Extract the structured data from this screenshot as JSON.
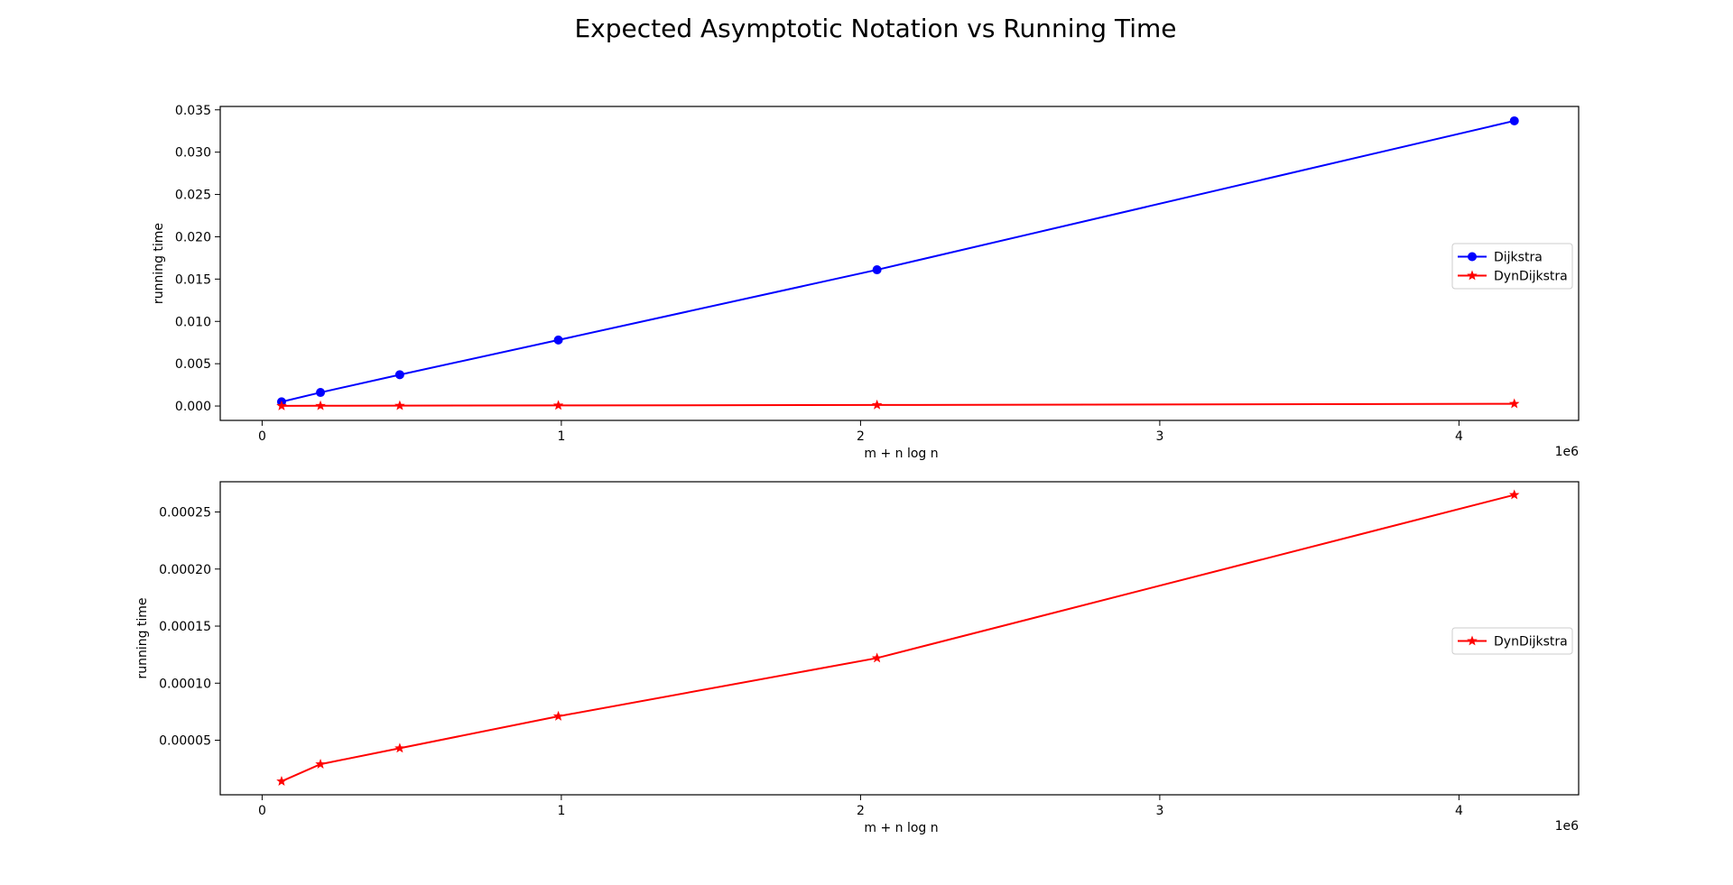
{
  "figure": {
    "title": "Expected Asymptotic Notation vs Running Time"
  },
  "chart_data": [
    {
      "type": "line",
      "title": "",
      "xlabel": "m + n log n",
      "ylabel": "running time",
      "x_offset_text": "1e6",
      "xlim": [
        -140000,
        4400000
      ],
      "ylim": [
        -0.0017,
        0.0354
      ],
      "x_ticks": [
        0,
        1000000,
        2000000,
        3000000,
        4000000
      ],
      "x_tick_labels": [
        "0",
        "1",
        "2",
        "3",
        "4"
      ],
      "y_ticks": [
        0.0,
        0.005,
        0.01,
        0.015,
        0.02,
        0.025,
        0.03,
        0.035
      ],
      "y_tick_labels": [
        "0.000",
        "0.005",
        "0.010",
        "0.015",
        "0.020",
        "0.025",
        "0.030",
        "0.035"
      ],
      "grid": false,
      "legend_position": "center-right",
      "x": [
        65000,
        195000,
        460000,
        990000,
        2055000,
        4185000
      ],
      "series": [
        {
          "name": "Dijkstra",
          "color": "#0000ff",
          "marker": "circle",
          "values": [
            0.0005,
            0.0016,
            0.0037,
            0.0078,
            0.0161,
            0.0337
          ]
        },
        {
          "name": "DynDijkstra",
          "color": "#ff0000",
          "marker": "star",
          "values": [
            1.4e-05,
            2.9e-05,
            4.3e-05,
            7.1e-05,
            0.000122,
            0.000265
          ]
        }
      ]
    },
    {
      "type": "line",
      "title": "",
      "xlabel": "m + n log n",
      "ylabel": "running time",
      "x_offset_text": "1e6",
      "xlim": [
        -140000,
        4400000
      ],
      "ylim": [
        2.2e-06,
        0.0002765
      ],
      "x_ticks": [
        0,
        1000000,
        2000000,
        3000000,
        4000000
      ],
      "x_tick_labels": [
        "0",
        "1",
        "2",
        "3",
        "4"
      ],
      "y_ticks": [
        5e-05,
        0.0001,
        0.00015,
        0.0002,
        0.00025
      ],
      "y_tick_labels": [
        "0.00005",
        "0.00010",
        "0.00015",
        "0.00020",
        "0.00025"
      ],
      "grid": false,
      "legend_position": "center-right",
      "x": [
        65000,
        195000,
        460000,
        990000,
        2055000,
        4185000
      ],
      "series": [
        {
          "name": "DynDijkstra",
          "color": "#ff0000",
          "marker": "star",
          "values": [
            1.4e-05,
            2.9e-05,
            4.3e-05,
            7.1e-05,
            0.000122,
            0.000265
          ]
        }
      ]
    }
  ]
}
